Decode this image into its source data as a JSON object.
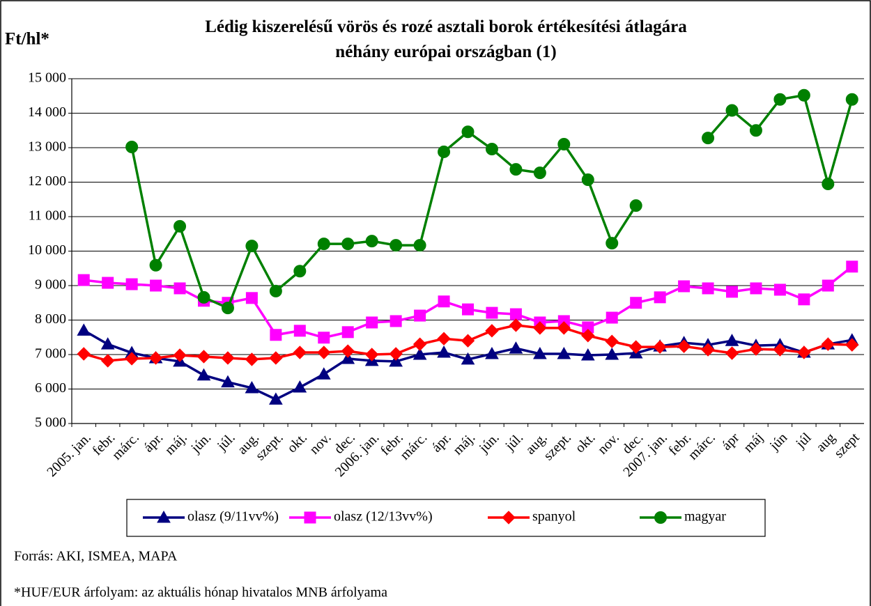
{
  "chart_data": {
    "type": "line",
    "title": "Lédig kiszerelésű vörös és rozé asztali borok értékesítési átlagára néhány európai országban (1)",
    "y_axis_label": "Ft/hl*",
    "categories": [
      "2005. jan.",
      "febr.",
      "márc.",
      "ápr.",
      "máj.",
      "jún.",
      "júl.",
      "aug.",
      "szept.",
      "okt.",
      "nov.",
      "dec.",
      "2006. jan.",
      "febr.",
      "márc.",
      "ápr.",
      "máj.",
      "jún.",
      "júl.",
      "aug.",
      "szept.",
      "okt.",
      "nov.",
      "dec.",
      "2007. jan.",
      "febr.",
      "márc.",
      "ápr",
      "máj",
      "jún",
      "júl",
      "aug",
      "szept"
    ],
    "series": [
      {
        "name": "olasz (9/11vv%)",
        "color": "#000080",
        "marker": "triangle",
        "values": [
          7700,
          7300,
          7050,
          6900,
          6800,
          6400,
          6200,
          6030,
          5700,
          6050,
          6430,
          6880,
          6820,
          6800,
          7000,
          7060,
          6860,
          7020,
          7180,
          7020,
          7020,
          6980,
          7000,
          7040,
          7240,
          7340,
          7280,
          7400,
          7260,
          7280,
          7060,
          7300,
          7420
        ]
      },
      {
        "name": "olasz (12/13vv%)",
        "color": "#ff00ff",
        "marker": "square",
        "values": [
          9160,
          9080,
          9040,
          9000,
          8920,
          8560,
          8500,
          8640,
          7570,
          7690,
          7490,
          7650,
          7930,
          7970,
          8130,
          8540,
          8310,
          8210,
          8170,
          7930,
          7970,
          7790,
          8070,
          8500,
          8660,
          8980,
          8920,
          8820,
          8920,
          8880,
          8600,
          9000,
          9550
        ]
      },
      {
        "name": "spanyol",
        "color": "#ff0000",
        "marker": "diamond",
        "values": [
          7020,
          6820,
          6880,
          6900,
          6980,
          6940,
          6900,
          6860,
          6900,
          7060,
          7060,
          7100,
          7000,
          7020,
          7300,
          7460,
          7400,
          7690,
          7850,
          7770,
          7770,
          7550,
          7380,
          7220,
          7220,
          7240,
          7140,
          7040,
          7160,
          7140,
          7060,
          7300,
          7280
        ]
      },
      {
        "name": "magyar",
        "color": "#008000",
        "marker": "circle",
        "values": [
          null,
          null,
          13020,
          9590,
          10720,
          8660,
          8350,
          10150,
          8840,
          9420,
          10210,
          10210,
          10290,
          10170,
          10170,
          12880,
          13460,
          12960,
          12370,
          12270,
          13100,
          12070,
          10230,
          11320,
          null,
          null,
          13280,
          14080,
          13500,
          14400,
          14520,
          11950,
          14400
        ]
      }
    ],
    "ylim": [
      5000,
      15000
    ],
    "yticks": [
      {
        "value": 5000,
        "label": "5 000"
      },
      {
        "value": 6000,
        "label": "6 000"
      },
      {
        "value": 7000,
        "label": "7 000"
      },
      {
        "value": 8000,
        "label": "8 000"
      },
      {
        "value": 9000,
        "label": "9 000"
      },
      {
        "value": 10000,
        "label": "10 000"
      },
      {
        "value": 11000,
        "label": "11 000"
      },
      {
        "value": 12000,
        "label": "12 000"
      },
      {
        "value": 13000,
        "label": "13 000"
      },
      {
        "value": 14000,
        "label": "14 000"
      },
      {
        "value": 15000,
        "label": "15 000"
      }
    ],
    "grid": true,
    "legend": "bottom",
    "notes": [
      "Forrás: AKI, ISMEA, MAPA",
      "*HUF/EUR árfolyam: az aktuális hónap hivatalos MNB árfolyama"
    ]
  }
}
